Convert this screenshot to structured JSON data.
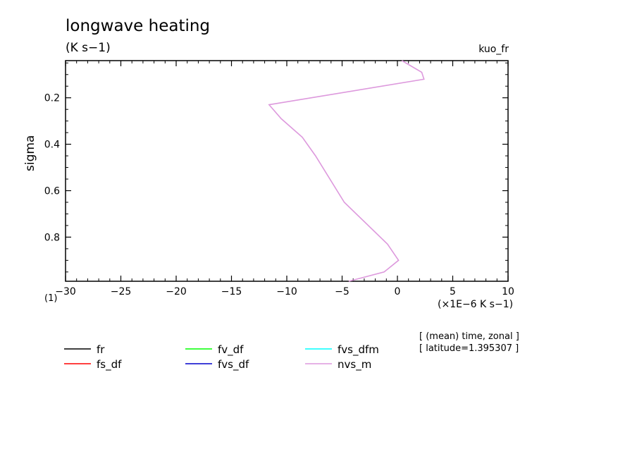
{
  "chart_data": {
    "type": "line",
    "title": "longwave heating",
    "units": "(K s−1)",
    "run_label": "kuo_fr",
    "ylabel": "sigma",
    "x_scale_label": "(×1E−6 K s−1)",
    "y_scale_label": "(1)",
    "xlim": [
      -30,
      10
    ],
    "ylim": [
      0.04,
      0.99
    ],
    "y_inverted": true,
    "x_ticks": [
      -30,
      -25,
      -20,
      -15,
      -10,
      -5,
      0,
      5,
      10
    ],
    "y_ticks": [
      0.2,
      0.4,
      0.6,
      0.8
    ],
    "x_tick_labels": [
      "−30",
      "−25",
      "−20",
      "−15",
      "−10",
      "−5",
      "0",
      "5",
      "10"
    ],
    "y_tick_labels": [
      "0.2",
      "0.4",
      "0.6",
      "0.8"
    ],
    "series": [
      {
        "name": "fr",
        "color": "#000000",
        "x": [],
        "y": []
      },
      {
        "name": "fs_df",
        "color": "#ff0000",
        "x": [],
        "y": []
      },
      {
        "name": "fv_df",
        "color": "#00ff00",
        "x": [],
        "y": []
      },
      {
        "name": "fvs_df",
        "color": "#0000cc",
        "x": [],
        "y": []
      },
      {
        "name": "fvs_dfm",
        "color": "#00ffff",
        "x": [],
        "y": []
      },
      {
        "name": "nvs_m",
        "color": "#dd99dd",
        "x": [
          0.4,
          2.2,
          2.4,
          -11.6,
          -10.5,
          -8.6,
          -7.4,
          -4.8,
          -0.9,
          0.1,
          -1.2,
          -4.4
        ],
        "y": [
          0.04,
          0.09,
          0.12,
          0.23,
          0.29,
          0.37,
          0.45,
          0.65,
          0.83,
          0.9,
          0.95,
          0.99
        ]
      }
    ],
    "annotations": [
      "[ (mean) time, zonal ]",
      "[ latitude=1.395307 ]"
    ]
  }
}
